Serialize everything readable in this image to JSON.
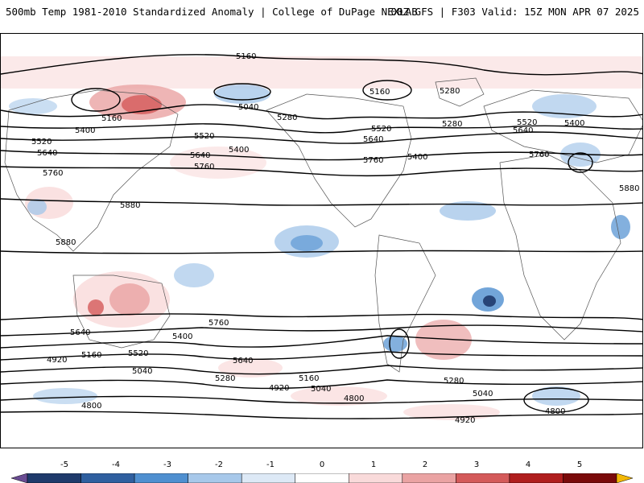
{
  "header": {
    "title": "500mb Temp 1981-2010 Standardized Anomaly | College of DuPage NEXLAB",
    "run_info": "00Z GFS | F303 Valid: 15Z MON APR 07 2025"
  },
  "colorbar": {
    "ticks": [
      "-5",
      "-4",
      "-3",
      "-2",
      "-1",
      "0",
      "1",
      "2",
      "3",
      "4",
      "5"
    ],
    "colors": [
      "#6a4c93",
      "#1f3a6b",
      "#2f5f9f",
      "#4f8fd0",
      "#a7c8ea",
      "#dde9f6",
      "#ffffff",
      "#f9dada",
      "#eaa3a3",
      "#d45a5a",
      "#b01e1e",
      "#7a0a0a",
      "#f2b705"
    ]
  },
  "contour_labels": [
    "5160",
    "5040",
    "5280",
    "5160",
    "5400",
    "5520",
    "5640",
    "5760",
    "5880",
    "5520",
    "5640",
    "5760",
    "5400",
    "5160",
    "5280",
    "5520",
    "5640",
    "5400",
    "5760",
    "5880",
    "5760",
    "5640",
    "5520",
    "5400",
    "5280",
    "5160",
    "5040",
    "4920",
    "4800",
    "5880",
    "5760",
    "5640",
    "5400",
    "5520",
    "5640",
    "5160",
    "5040",
    "4920",
    "4800",
    "5280",
    "5040",
    "4920",
    "4800",
    "5280"
  ]
}
